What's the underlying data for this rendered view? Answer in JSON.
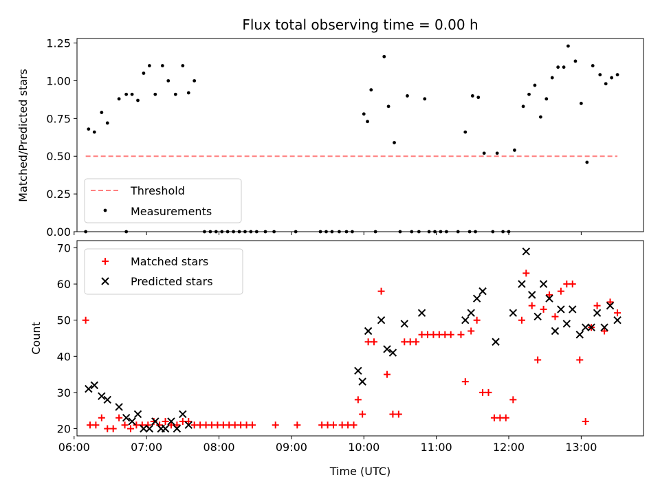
{
  "chart_data": [
    {
      "type": "scatter",
      "title": "Flux total observing time = 0.00 h",
      "xlabel": "",
      "ylabel": "Matched/Predicted stars",
      "xlim": [
        6.04,
        13.86
      ],
      "ylim": [
        0,
        1.28
      ],
      "xticks": [
        6,
        7,
        8,
        9,
        10,
        11,
        12,
        13
      ],
      "yticks": [
        0.0,
        0.25,
        0.5,
        0.75,
        1.0,
        1.25
      ],
      "ytick_labels": [
        "0.00",
        "0.25",
        "0.50",
        "0.75",
        "1.00",
        "1.25"
      ],
      "legend_position": "lower-left",
      "threshold": {
        "name": "Threshold",
        "y": 0.5,
        "x": [
          6.16,
          13.5
        ],
        "color": "#ff7f7f"
      },
      "series": [
        {
          "name": "Measurements",
          "color": "#000000",
          "points": [
            [
              6.2,
              0.68
            ],
            [
              6.28,
              0.66
            ],
            [
              6.38,
              0.79
            ],
            [
              6.46,
              0.72
            ],
            [
              6.62,
              0.88
            ],
            [
              6.72,
              0.91
            ],
            [
              6.8,
              0.91
            ],
            [
              6.88,
              0.87
            ],
            [
              6.96,
              1.05
            ],
            [
              7.04,
              1.1
            ],
            [
              7.12,
              0.91
            ],
            [
              7.22,
              1.1
            ],
            [
              7.3,
              1.0
            ],
            [
              7.4,
              0.91
            ],
            [
              7.5,
              1.1
            ],
            [
              7.58,
              0.92
            ],
            [
              7.66,
              1.0
            ],
            [
              10.0,
              0.78
            ],
            [
              10.05,
              0.73
            ],
            [
              10.1,
              0.94
            ],
            [
              10.28,
              1.16
            ],
            [
              10.34,
              0.83
            ],
            [
              10.42,
              0.59
            ],
            [
              10.6,
              0.9
            ],
            [
              10.84,
              0.88
            ],
            [
              11.4,
              0.66
            ],
            [
              11.5,
              0.9
            ],
            [
              11.58,
              0.89
            ],
            [
              11.66,
              0.52
            ],
            [
              11.84,
              0.52
            ],
            [
              12.08,
              0.54
            ],
            [
              12.2,
              0.83
            ],
            [
              12.28,
              0.91
            ],
            [
              12.36,
              0.97
            ],
            [
              12.44,
              0.76
            ],
            [
              12.52,
              0.88
            ],
            [
              12.6,
              1.02
            ],
            [
              12.68,
              1.09
            ],
            [
              12.76,
              1.09
            ],
            [
              12.82,
              1.23
            ],
            [
              12.92,
              1.13
            ],
            [
              13.0,
              0.85
            ],
            [
              13.08,
              0.46
            ],
            [
              13.16,
              1.1
            ],
            [
              13.26,
              1.04
            ],
            [
              13.34,
              0.98
            ],
            [
              13.42,
              1.02
            ],
            [
              13.5,
              1.04
            ],
            [
              6.16,
              0
            ],
            [
              6.72,
              0
            ],
            [
              7.8,
              0
            ],
            [
              7.88,
              0
            ],
            [
              7.96,
              0
            ],
            [
              8.04,
              0
            ],
            [
              8.12,
              0
            ],
            [
              8.2,
              0
            ],
            [
              8.28,
              0
            ],
            [
              8.36,
              0
            ],
            [
              8.44,
              0
            ],
            [
              8.52,
              0
            ],
            [
              8.64,
              0
            ],
            [
              8.76,
              0
            ],
            [
              9.06,
              0
            ],
            [
              9.4,
              0
            ],
            [
              9.48,
              0
            ],
            [
              9.56,
              0
            ],
            [
              9.66,
              0
            ],
            [
              9.76,
              0
            ],
            [
              9.84,
              0
            ],
            [
              10.16,
              0
            ],
            [
              10.5,
              0
            ],
            [
              10.66,
              0
            ],
            [
              10.76,
              0
            ],
            [
              10.9,
              0
            ],
            [
              10.98,
              0
            ],
            [
              11.06,
              0
            ],
            [
              11.14,
              0
            ],
            [
              11.3,
              0
            ],
            [
              11.46,
              0
            ],
            [
              11.54,
              0
            ],
            [
              11.78,
              0
            ],
            [
              11.92,
              0
            ],
            [
              12.0,
              0
            ]
          ]
        }
      ]
    },
    {
      "type": "scatter",
      "title": "",
      "xlabel": "Time (UTC)",
      "ylabel": "Count",
      "xlim": [
        6.04,
        13.86
      ],
      "ylim": [
        18,
        72
      ],
      "xticks": [
        6,
        7,
        8,
        9,
        10,
        11,
        12,
        13
      ],
      "xtick_labels": [
        "06:00",
        "07:00",
        "08:00",
        "09:00",
        "10:00",
        "11:00",
        "12:00",
        "13:00"
      ],
      "yticks": [
        20,
        30,
        40,
        50,
        60,
        70
      ],
      "legend_position": "upper-left",
      "series": [
        {
          "name": "Matched stars",
          "color": "#ff0000",
          "points": [
            [
              6.16,
              50
            ],
            [
              6.22,
              21
            ],
            [
              6.3,
              21
            ],
            [
              6.38,
              23
            ],
            [
              6.46,
              20
            ],
            [
              6.54,
              20
            ],
            [
              6.62,
              23
            ],
            [
              6.7,
              21
            ],
            [
              6.78,
              20
            ],
            [
              6.86,
              21
            ],
            [
              6.94,
              21
            ],
            [
              7.02,
              21
            ],
            [
              7.1,
              22
            ],
            [
              7.18,
              21
            ],
            [
              7.26,
              22
            ],
            [
              7.34,
              21
            ],
            [
              7.42,
              21
            ],
            [
              7.5,
              22
            ],
            [
              7.58,
              22
            ],
            [
              7.66,
              21
            ],
            [
              7.74,
              21
            ],
            [
              7.82,
              21
            ],
            [
              7.9,
              21
            ],
            [
              7.98,
              21
            ],
            [
              8.06,
              21
            ],
            [
              8.14,
              21
            ],
            [
              8.22,
              21
            ],
            [
              8.3,
              21
            ],
            [
              8.38,
              21
            ],
            [
              8.46,
              21
            ],
            [
              8.78,
              21
            ],
            [
              9.08,
              21
            ],
            [
              9.42,
              21
            ],
            [
              9.5,
              21
            ],
            [
              9.58,
              21
            ],
            [
              9.7,
              21
            ],
            [
              9.78,
              21
            ],
            [
              9.86,
              21
            ],
            [
              9.92,
              28
            ],
            [
              9.98,
              24
            ],
            [
              10.06,
              44
            ],
            [
              10.14,
              44
            ],
            [
              10.24,
              58
            ],
            [
              10.32,
              35
            ],
            [
              10.4,
              24
            ],
            [
              10.48,
              24
            ],
            [
              10.56,
              44
            ],
            [
              10.64,
              44
            ],
            [
              10.72,
              44
            ],
            [
              10.8,
              46
            ],
            [
              10.88,
              46
            ],
            [
              10.96,
              46
            ],
            [
              11.04,
              46
            ],
            [
              11.12,
              46
            ],
            [
              11.2,
              46
            ],
            [
              11.34,
              46
            ],
            [
              11.4,
              33
            ],
            [
              11.48,
              47
            ],
            [
              11.56,
              50
            ],
            [
              11.64,
              30
            ],
            [
              11.72,
              30
            ],
            [
              11.8,
              23
            ],
            [
              11.88,
              23
            ],
            [
              11.96,
              23
            ],
            [
              12.06,
              28
            ],
            [
              12.18,
              50
            ],
            [
              12.24,
              63
            ],
            [
              12.32,
              54
            ],
            [
              12.4,
              39
            ],
            [
              12.48,
              53
            ],
            [
              12.56,
              57
            ],
            [
              12.64,
              51
            ],
            [
              12.72,
              58
            ],
            [
              12.8,
              60
            ],
            [
              12.88,
              60
            ],
            [
              12.98,
              39
            ],
            [
              13.06,
              22
            ],
            [
              13.14,
              48
            ],
            [
              13.22,
              54
            ],
            [
              13.32,
              47
            ],
            [
              13.4,
              55
            ],
            [
              13.5,
              52
            ]
          ]
        },
        {
          "name": "Predicted stars",
          "color": "#000000",
          "points": [
            [
              6.2,
              31
            ],
            [
              6.28,
              32
            ],
            [
              6.38,
              29
            ],
            [
              6.46,
              28
            ],
            [
              6.62,
              26
            ],
            [
              6.72,
              23
            ],
            [
              6.8,
              22
            ],
            [
              6.88,
              24
            ],
            [
              6.96,
              20
            ],
            [
              7.04,
              20
            ],
            [
              7.12,
              22
            ],
            [
              7.2,
              20
            ],
            [
              7.26,
              20
            ],
            [
              7.34,
              22
            ],
            [
              7.42,
              20
            ],
            [
              7.5,
              24
            ],
            [
              7.58,
              21
            ],
            [
              9.92,
              36
            ],
            [
              9.98,
              33
            ],
            [
              10.06,
              47
            ],
            [
              10.24,
              50
            ],
            [
              10.32,
              42
            ],
            [
              10.4,
              41
            ],
            [
              10.56,
              49
            ],
            [
              10.8,
              52
            ],
            [
              11.4,
              50
            ],
            [
              11.48,
              52
            ],
            [
              11.56,
              56
            ],
            [
              11.64,
              58
            ],
            [
              11.82,
              44
            ],
            [
              12.06,
              52
            ],
            [
              12.18,
              60
            ],
            [
              12.24,
              69
            ],
            [
              12.32,
              57
            ],
            [
              12.4,
              51
            ],
            [
              12.48,
              60
            ],
            [
              12.56,
              56
            ],
            [
              12.64,
              47
            ],
            [
              12.72,
              53
            ],
            [
              12.8,
              49
            ],
            [
              12.88,
              53
            ],
            [
              12.98,
              46
            ],
            [
              13.06,
              48
            ],
            [
              13.14,
              48
            ],
            [
              13.22,
              52
            ],
            [
              13.32,
              48
            ],
            [
              13.4,
              54
            ],
            [
              13.5,
              50
            ]
          ]
        }
      ]
    }
  ]
}
